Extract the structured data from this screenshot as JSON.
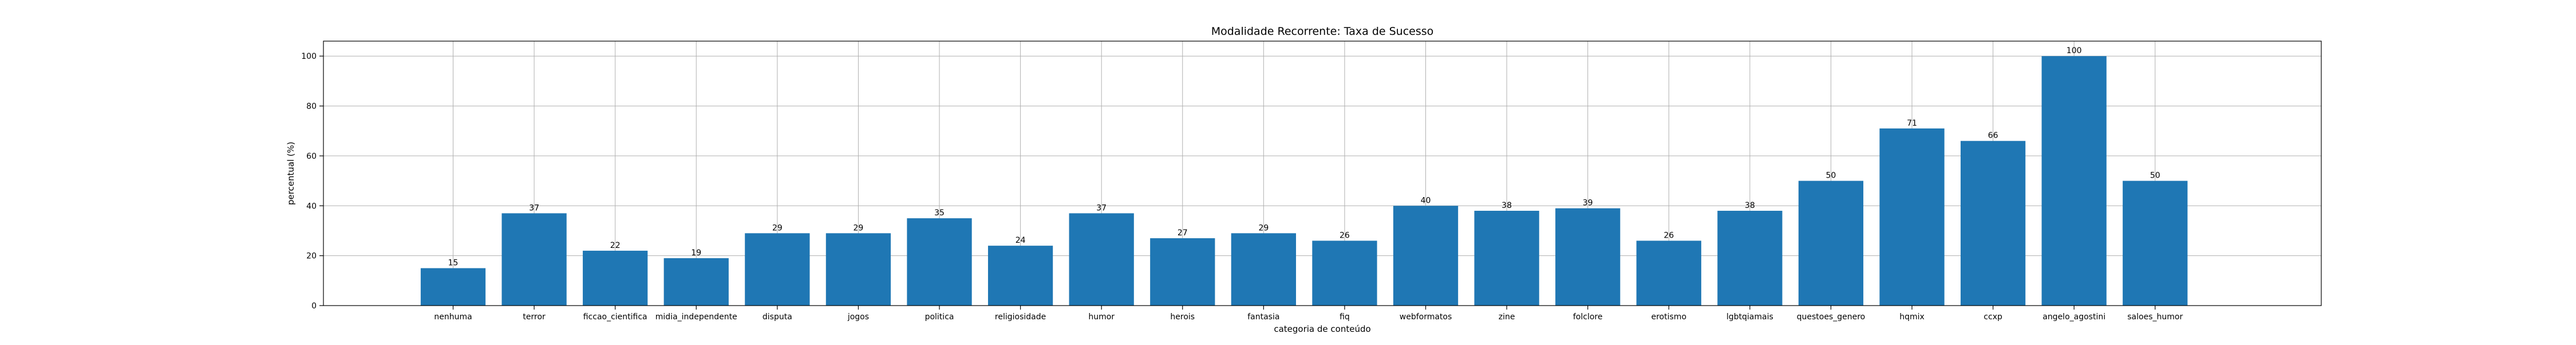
{
  "chart_data": {
    "type": "bar",
    "title": "Modalidade Recorrente: Taxa de Sucesso",
    "xlabel": "categoria de conteúdo",
    "ylabel": "percentual (%)",
    "categories": [
      "nenhuma",
      "terror",
      "ficcao_cientifica",
      "midia_independente",
      "disputa",
      "jogos",
      "politica",
      "religiosidade",
      "humor",
      "herois",
      "fantasia",
      "fiq",
      "webformatos",
      "zine",
      "folclore",
      "erotismo",
      "lgbtqiamais",
      "questoes_genero",
      "hqmix",
      "ccxp",
      "angelo_agostini",
      "saloes_humor"
    ],
    "values": [
      15,
      37,
      22,
      19,
      29,
      29,
      35,
      24,
      37,
      27,
      29,
      26,
      40,
      38,
      39,
      26,
      38,
      50,
      71,
      66,
      100,
      50
    ],
    "data_labels": [
      "15",
      "37",
      "22",
      "19",
      "29",
      "29",
      "35",
      "24",
      "37",
      "27",
      "29",
      "26",
      "40",
      "38",
      "39",
      "26",
      "38",
      "50",
      "71",
      "66",
      "100",
      "50"
    ],
    "ylim": [
      0,
      106
    ],
    "yticks": [
      0,
      20,
      40,
      60,
      80,
      100
    ],
    "grid": true,
    "colors": {
      "bar": "#1f77b4",
      "grid": "#b0b0b0",
      "axis": "#000000"
    }
  }
}
